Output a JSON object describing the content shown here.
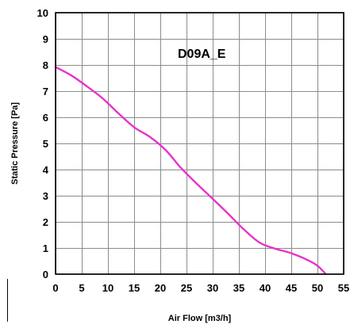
{
  "chart_data": {
    "type": "line",
    "xlabel": "Air Flow [m3/h]",
    "ylabel": "Static Pressure [Pa]",
    "annotation": "D09A_E",
    "xlim": [
      0,
      55
    ],
    "ylim": [
      0,
      10
    ],
    "x_ticks": [
      0,
      5,
      10,
      15,
      20,
      25,
      30,
      35,
      40,
      45,
      50,
      55
    ],
    "y_ticks": [
      0,
      1,
      2,
      3,
      4,
      5,
      6,
      7,
      8,
      9,
      10
    ],
    "grid": true,
    "series": [
      {
        "color": "#e633cc",
        "x": [
          0,
          3,
          6,
          9,
          12,
          15,
          18,
          21,
          24,
          27,
          30,
          33,
          36,
          39,
          42,
          45,
          48,
          50,
          51.5
        ],
        "y": [
          7.92,
          7.6,
          7.18,
          6.72,
          6.15,
          5.62,
          5.25,
          4.75,
          4.05,
          3.45,
          2.88,
          2.3,
          1.7,
          1.2,
          0.97,
          0.8,
          0.55,
          0.32,
          0.02
        ]
      }
    ]
  }
}
